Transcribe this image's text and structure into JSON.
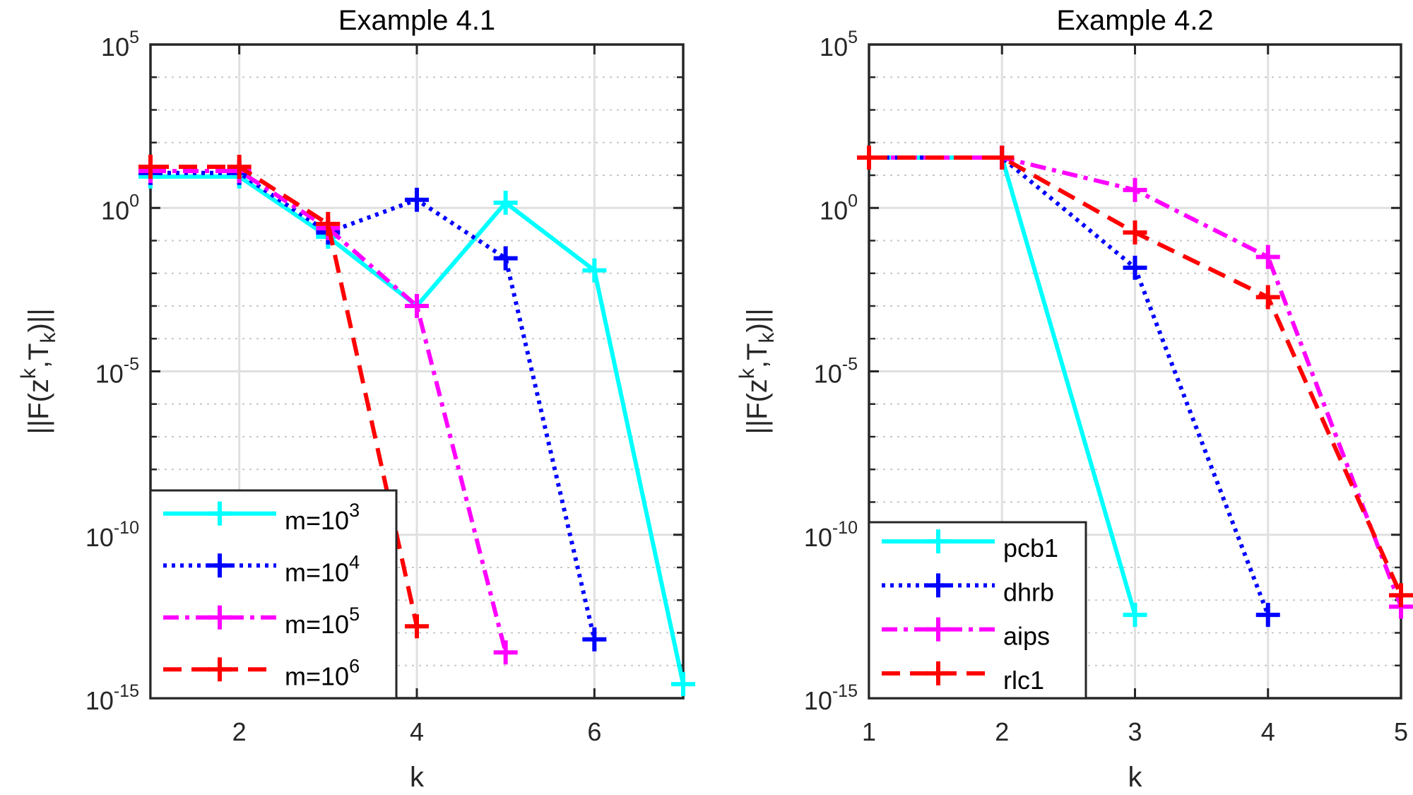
{
  "chart_data": [
    {
      "type": "line",
      "title": "Example 4.1",
      "xlabel": "k",
      "ylabel": "||F(z^k,T_k)||",
      "ylabel_parts": {
        "main": "||F(z",
        "sup": "k",
        "mid": ",T",
        "sub": "k",
        "end": ")||"
      },
      "yscale": "log",
      "xlim": [
        1,
        7
      ],
      "ylim": [
        1e-15,
        100000.0
      ],
      "xticks": [
        2,
        4,
        6
      ],
      "yticks": [
        {
          "base": "10",
          "exp": "5",
          "value": 5
        },
        {
          "base": "10",
          "exp": "0",
          "value": 0
        },
        {
          "base": "10",
          "exp": "-5",
          "value": -5
        },
        {
          "base": "10",
          "exp": "-10",
          "value": -10
        },
        {
          "base": "10",
          "exp": "-15",
          "value": -15
        }
      ],
      "grid": true,
      "legend_position": "bottom-left",
      "series": [
        {
          "name": "m=10^3",
          "label_base": "m=10",
          "label_exp": "3",
          "color": "#00ffff",
          "dash": "solid",
          "x": [
            1,
            2,
            3,
            4,
            5,
            6,
            7
          ],
          "log10_y": [
            0.96,
            0.96,
            -0.88,
            -3.0,
            0.16,
            -1.91,
            -14.57
          ]
        },
        {
          "name": "m=10^4",
          "label_base": "m=10",
          "label_exp": "4",
          "color": "#0000ff",
          "dash": "dotted",
          "x": [
            1,
            2,
            3,
            4,
            5,
            6
          ],
          "log10_y": [
            1.07,
            1.07,
            -0.75,
            0.25,
            -1.54,
            -13.2
          ]
        },
        {
          "name": "m=10^5",
          "label_base": "m=10",
          "label_exp": "5",
          "color": "#ff00ff",
          "dash": "dashdot",
          "x": [
            1,
            2,
            3,
            4,
            5
          ],
          "log10_y": [
            1.13,
            1.13,
            -0.62,
            -3.0,
            -13.6
          ]
        },
        {
          "name": "m=10^6",
          "label_base": "m=10",
          "label_exp": "6",
          "color": "#ff0000",
          "dash": "dashed",
          "x": [
            1,
            2,
            3,
            4
          ],
          "log10_y": [
            1.26,
            1.26,
            -0.49,
            -12.8
          ]
        }
      ]
    },
    {
      "type": "line",
      "title": "Example 4.2",
      "xlabel": "k",
      "ylabel": "||F(z^k,T_k)||",
      "ylabel_parts": {
        "main": "||F(z",
        "sup": "k",
        "mid": ",T",
        "sub": "k",
        "end": ")||"
      },
      "yscale": "log",
      "xlim": [
        1,
        5
      ],
      "ylim": [
        1e-15,
        100000.0
      ],
      "xticks": [
        1,
        2,
        3,
        4,
        5
      ],
      "yticks": [
        {
          "base": "10",
          "exp": "5",
          "value": 5
        },
        {
          "base": "10",
          "exp": "0",
          "value": 0
        },
        {
          "base": "10",
          "exp": "-5",
          "value": -5
        },
        {
          "base": "10",
          "exp": "-10",
          "value": -10
        },
        {
          "base": "10",
          "exp": "-15",
          "value": -15
        }
      ],
      "grid": true,
      "legend_position": "bottom-left",
      "series": [
        {
          "name": "pcb1",
          "label_base": "pcb1",
          "label_exp": "",
          "color": "#00ffff",
          "dash": "solid",
          "x": [
            1,
            2,
            3
          ],
          "log10_y": [
            1.54,
            1.54,
            -12.45
          ]
        },
        {
          "name": "dhrb",
          "label_base": "dhrb",
          "label_exp": "",
          "color": "#0000ff",
          "dash": "dotted",
          "x": [
            1,
            2,
            3,
            4
          ],
          "log10_y": [
            1.54,
            1.54,
            -1.83,
            -12.45
          ]
        },
        {
          "name": "aips",
          "label_base": "aips",
          "label_exp": "",
          "color": "#ff00ff",
          "dash": "dashdot",
          "x": [
            1,
            2,
            3,
            4,
            5
          ],
          "log10_y": [
            1.54,
            1.54,
            0.55,
            -1.5,
            -12.2
          ]
        },
        {
          "name": "rlc1",
          "label_base": "rlc1",
          "label_exp": "",
          "color": "#ff0000",
          "dash": "dashed",
          "x": [
            1,
            2,
            3,
            4,
            5
          ],
          "log10_y": [
            1.54,
            1.54,
            -0.75,
            -2.73,
            -11.85
          ]
        }
      ]
    }
  ]
}
